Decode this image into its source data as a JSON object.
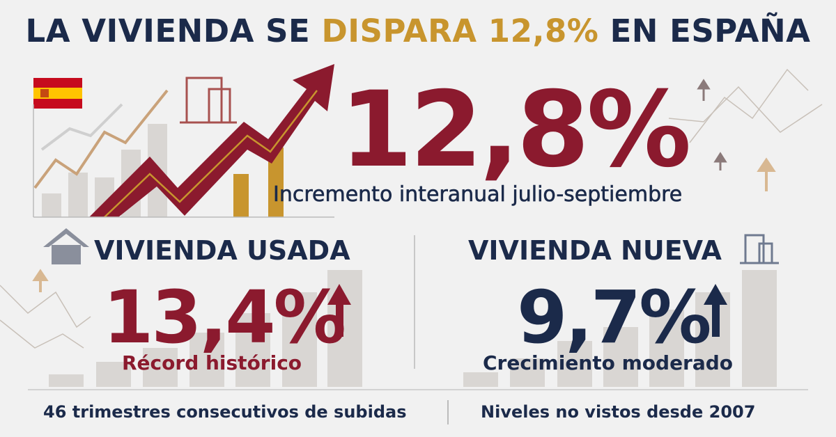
{
  "title": {
    "part1": "LA VIVIENDA SE",
    "highlight": "DISPARA 12,8%",
    "part2": "EN ESPAÑA"
  },
  "main": {
    "value": "12,8%",
    "caption": "Incremento interanual julio-septiembre"
  },
  "used": {
    "heading": "VIVIENDA USADA",
    "value": "13,4%",
    "caption": "Récord histórico",
    "note": "46 trimestres consecutivos de subidas"
  },
  "new": {
    "heading": "VIVIENDA NUEVA",
    "value": "9,7%",
    "caption": "Crecimiento moderado",
    "note": "Niveles no vistos desde 2007"
  }
}
